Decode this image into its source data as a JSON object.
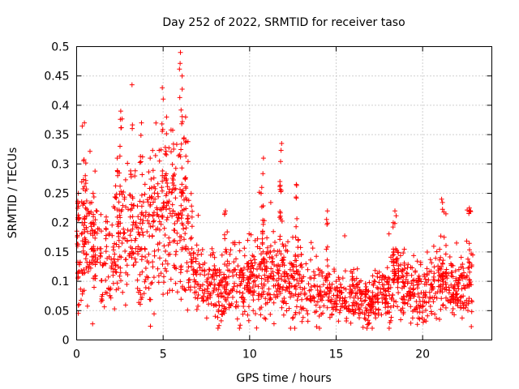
{
  "chart_data": {
    "type": "scatter",
    "title": "Day 252 of 2022, SRMTID for receiver taso",
    "xlabel": "GPS time / hours",
    "ylabel": "SRMTID / TECUs",
    "xlim": [
      0,
      24
    ],
    "ylim": [
      0,
      0.5
    ],
    "x_ticks": [
      0,
      5,
      10,
      15,
      20
    ],
    "x_tick_labels": [
      "0",
      "5",
      "10",
      "15",
      "20"
    ],
    "y_ticks": [
      0,
      0.05,
      0.1,
      0.15,
      0.2,
      0.25,
      0.3,
      0.35,
      0.4,
      0.45,
      0.5
    ],
    "y_tick_labels": [
      "0",
      "0.05",
      "0.1",
      "0.15",
      "0.2",
      "0.25",
      "0.3",
      "0.35",
      "0.4",
      "0.45",
      "0.5"
    ],
    "grid": true,
    "marker": "plus",
    "color": "#ff0000",
    "x_end": 22.9,
    "trend": [
      [
        0.0,
        0.14
      ],
      [
        0.5,
        0.16
      ],
      [
        1.0,
        0.15
      ],
      [
        1.5,
        0.14
      ],
      [
        2.0,
        0.14
      ],
      [
        2.5,
        0.17
      ],
      [
        3.0,
        0.18
      ],
      [
        3.5,
        0.17
      ],
      [
        4.0,
        0.16
      ],
      [
        4.5,
        0.18
      ],
      [
        5.0,
        0.2
      ],
      [
        5.5,
        0.21
      ],
      [
        6.0,
        0.2
      ],
      [
        6.5,
        0.15
      ],
      [
        7.0,
        0.1
      ],
      [
        7.5,
        0.09
      ],
      [
        8.0,
        0.085
      ],
      [
        8.5,
        0.09
      ],
      [
        9.0,
        0.09
      ],
      [
        9.5,
        0.09
      ],
      [
        10.0,
        0.1
      ],
      [
        10.5,
        0.11
      ],
      [
        11.0,
        0.1
      ],
      [
        11.5,
        0.11
      ],
      [
        12.0,
        0.1
      ],
      [
        12.5,
        0.09
      ],
      [
        13.0,
        0.09
      ],
      [
        13.5,
        0.085
      ],
      [
        14.0,
        0.08
      ],
      [
        14.5,
        0.085
      ],
      [
        15.0,
        0.08
      ],
      [
        15.5,
        0.075
      ],
      [
        16.0,
        0.07
      ],
      [
        16.5,
        0.065
      ],
      [
        17.0,
        0.065
      ],
      [
        17.5,
        0.07
      ],
      [
        18.0,
        0.09
      ],
      [
        18.5,
        0.1
      ],
      [
        19.0,
        0.085
      ],
      [
        19.5,
        0.08
      ],
      [
        20.0,
        0.075
      ],
      [
        20.5,
        0.08
      ],
      [
        21.0,
        0.1
      ],
      [
        21.5,
        0.085
      ],
      [
        22.0,
        0.08
      ],
      [
        22.5,
        0.09
      ],
      [
        22.9,
        0.1
      ]
    ],
    "peaks": [
      {
        "x": 0.1,
        "y": 0.25
      },
      {
        "x": 0.45,
        "y": 0.37
      },
      {
        "x": 0.5,
        "y": 0.28
      },
      {
        "x": 0.95,
        "y": 0.25
      },
      {
        "x": 2.35,
        "y": 0.31
      },
      {
        "x": 2.55,
        "y": 0.39
      },
      {
        "x": 3.2,
        "y": 0.435
      },
      {
        "x": 3.75,
        "y": 0.37
      },
      {
        "x": 4.25,
        "y": 0.31
      },
      {
        "x": 4.95,
        "y": 0.43
      },
      {
        "x": 5.2,
        "y": 0.38
      },
      {
        "x": 5.6,
        "y": 0.28
      },
      {
        "x": 6.0,
        "y": 0.49
      },
      {
        "x": 6.1,
        "y": 0.45
      },
      {
        "x": 6.3,
        "y": 0.38
      },
      {
        "x": 8.6,
        "y": 0.22
      },
      {
        "x": 10.7,
        "y": 0.26
      },
      {
        "x": 10.8,
        "y": 0.31
      },
      {
        "x": 11.85,
        "y": 0.335
      },
      {
        "x": 11.75,
        "y": 0.27
      },
      {
        "x": 12.7,
        "y": 0.265
      },
      {
        "x": 14.5,
        "y": 0.22
      },
      {
        "x": 18.4,
        "y": 0.22
      },
      {
        "x": 18.3,
        "y": 0.2
      },
      {
        "x": 21.1,
        "y": 0.24
      },
      {
        "x": 22.7,
        "y": 0.225
      }
    ]
  }
}
